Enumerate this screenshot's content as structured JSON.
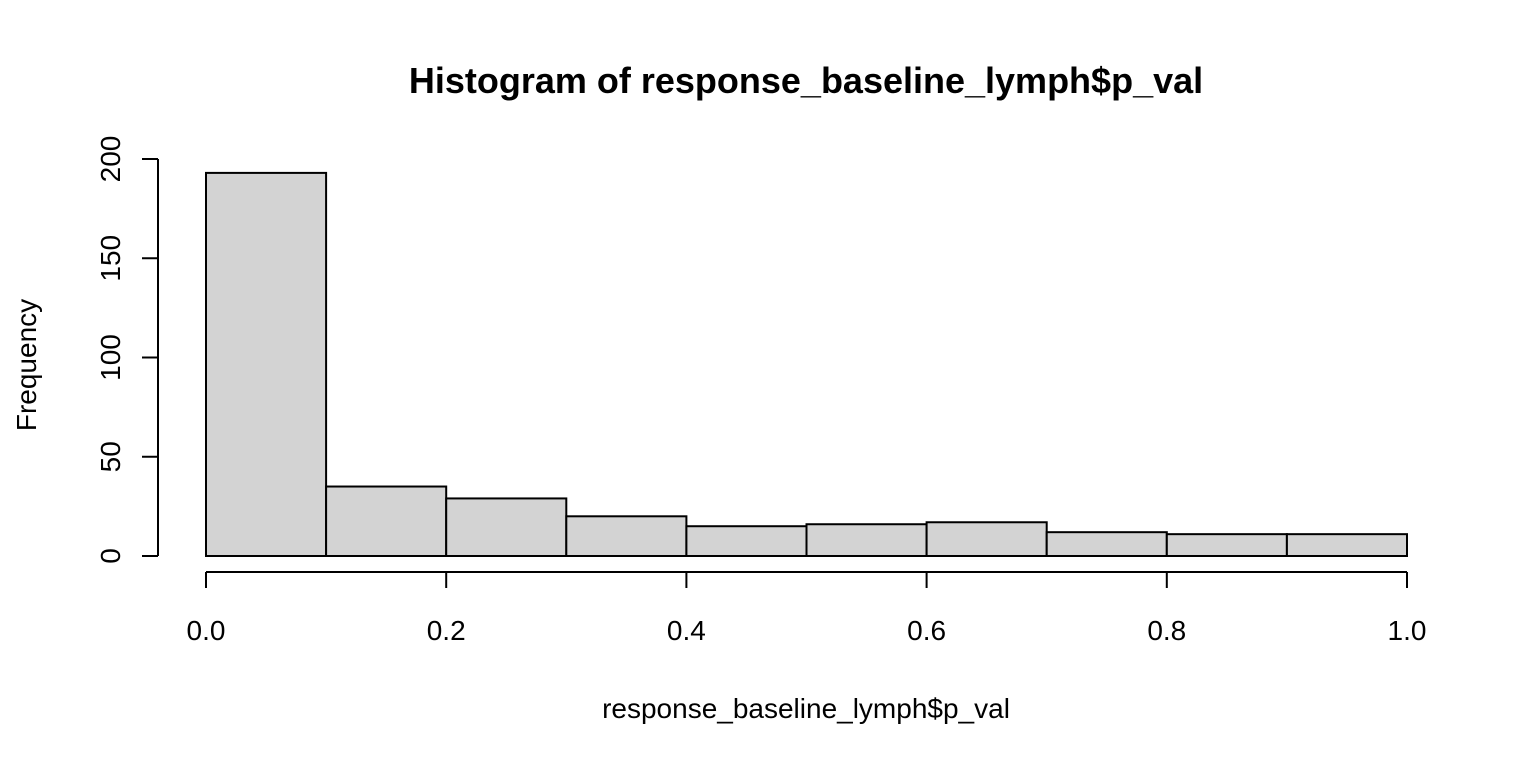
{
  "chart_data": {
    "type": "bar",
    "title": "Histogram of response_baseline_lymph$p_val",
    "xlabel": "response_baseline_lymph$p_val",
    "ylabel": "Frequency",
    "bins": [
      {
        "start": 0.0,
        "end": 0.1,
        "count": 193
      },
      {
        "start": 0.1,
        "end": 0.2,
        "count": 35
      },
      {
        "start": 0.2,
        "end": 0.3,
        "count": 29
      },
      {
        "start": 0.3,
        "end": 0.4,
        "count": 20
      },
      {
        "start": 0.4,
        "end": 0.5,
        "count": 15
      },
      {
        "start": 0.5,
        "end": 0.6,
        "count": 16
      },
      {
        "start": 0.6,
        "end": 0.7,
        "count": 17
      },
      {
        "start": 0.7,
        "end": 0.8,
        "count": 12
      },
      {
        "start": 0.8,
        "end": 0.9,
        "count": 11
      },
      {
        "start": 0.9,
        "end": 1.0,
        "count": 11
      }
    ],
    "xlim": [
      0.0,
      1.0
    ],
    "ylim": [
      0,
      200
    ],
    "x_ticks": [
      "0.0",
      "0.2",
      "0.4",
      "0.6",
      "0.8",
      "1.0"
    ],
    "y_ticks": [
      "0",
      "50",
      "100",
      "150",
      "200"
    ],
    "grid": false,
    "bar_color": "#d3d3d3",
    "edge_color": "#000000"
  }
}
